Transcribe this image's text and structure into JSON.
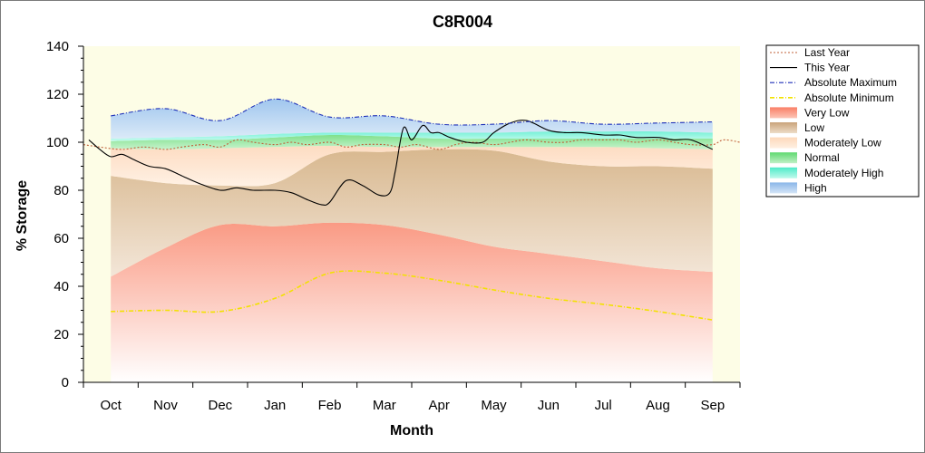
{
  "chart_data": {
    "type": "area",
    "title": "C8R004",
    "xlabel": "Month",
    "ylabel": "% Storage",
    "ylim": [
      0,
      140
    ],
    "yticks": [
      0,
      20,
      40,
      60,
      80,
      100,
      120,
      140
    ],
    "xlim": [
      -0.5,
      11.5
    ],
    "categories": [
      "Oct",
      "Nov",
      "Dec",
      "Jan",
      "Feb",
      "Mar",
      "Apr",
      "May",
      "Jun",
      "Jul",
      "Aug",
      "Sep"
    ],
    "legend_position": "right",
    "grid": false,
    "band_boundaries": {
      "x": [
        0,
        1,
        2,
        3,
        4,
        5,
        6,
        7,
        8,
        9,
        10,
        11
      ],
      "absolute_min": [
        29.5,
        30,
        29.5,
        35,
        45.5,
        45.5,
        42.5,
        38.5,
        35,
        32.5,
        29.5,
        26
      ],
      "very_low_top": [
        44,
        56,
        65.5,
        65,
        66.5,
        65.5,
        61.5,
        56.5,
        53.5,
        50.5,
        47.5,
        46
      ],
      "low_top": [
        86,
        83,
        82,
        83,
        95,
        96,
        97,
        96.5,
        92,
        90,
        90,
        89
      ],
      "moderately_low_top": [
        97.5,
        97,
        97.5,
        98,
        98.5,
        98,
        98,
        98,
        98,
        98,
        97.5,
        97
      ],
      "normal_top": [
        100.5,
        101,
        101,
        102,
        103,
        102.5,
        101.5,
        101.5,
        101.5,
        101.5,
        101.5,
        101.5
      ],
      "moderately_high_top": [
        101.5,
        102,
        102.5,
        103.5,
        104,
        104,
        104,
        104,
        104.5,
        104.5,
        104.5,
        104
      ],
      "absolute_max": [
        111,
        114,
        109,
        118,
        110.5,
        111,
        107.5,
        107.5,
        109,
        107.5,
        108,
        108.5
      ]
    },
    "series": [
      {
        "name": "Last Year",
        "color": "#c0603a",
        "style": "dotted",
        "x": [
          -0.5,
          -0.2,
          0.2,
          0.6,
          1.0,
          1.3,
          1.7,
          2.0,
          2.3,
          2.6,
          3.0,
          3.3,
          3.6,
          4.0,
          4.3,
          4.6,
          5.0,
          5.3,
          5.6,
          6.0,
          6.3,
          6.6,
          7.0,
          7.3,
          7.6,
          8.0,
          8.3,
          8.6,
          9.0,
          9.3,
          9.6,
          10.0,
          10.3,
          10.6,
          11.0,
          11.2,
          11.5
        ],
        "y": [
          99,
          98,
          97,
          98,
          97,
          98,
          99,
          98,
          101,
          100,
          99,
          100,
          99,
          100,
          98,
          99,
          99,
          98,
          99,
          97,
          99,
          100,
          99,
          100,
          101,
          100,
          100,
          101,
          101,
          101,
          100,
          101,
          100,
          99,
          99,
          101,
          100
        ]
      },
      {
        "name": "This Year",
        "color": "#000000",
        "style": "solid",
        "x": [
          -0.4,
          -0.2,
          0.0,
          0.2,
          0.4,
          0.7,
          1.0,
          1.3,
          1.6,
          2.0,
          2.3,
          2.6,
          3.0,
          3.3,
          3.6,
          3.85,
          4.0,
          4.3,
          4.6,
          4.9,
          5.1,
          5.2,
          5.35,
          5.5,
          5.7,
          5.85,
          6.0,
          6.2,
          6.5,
          6.8,
          7.0,
          7.3,
          7.6,
          8.0,
          8.3,
          8.6,
          9.0,
          9.3,
          9.6,
          10.0,
          10.3,
          10.6,
          11.0
        ],
        "y": [
          101,
          97,
          94,
          95,
          93,
          90,
          89,
          86,
          83,
          80,
          81,
          80,
          80,
          79,
          76,
          74,
          75,
          84,
          82,
          78,
          79,
          88,
          106,
          101,
          107,
          104,
          104,
          102,
          100,
          100,
          104,
          108,
          109,
          105,
          104,
          104,
          103,
          103,
          102,
          102,
          101,
          101,
          97
        ]
      },
      {
        "name": "Absolute Maximum",
        "color": "#1d2fb8",
        "style": "dashdot",
        "x": [
          0,
          1,
          2,
          3,
          4,
          5,
          6,
          7,
          8,
          9,
          10,
          11
        ],
        "y": [
          111,
          114,
          109,
          118,
          110.5,
          111,
          107.5,
          107.5,
          109,
          107.5,
          108,
          108.5
        ]
      },
      {
        "name": "Absolute Minimum",
        "color": "#f2e200",
        "style": "dashdot",
        "x": [
          0,
          1,
          2,
          3,
          4,
          5,
          6,
          7,
          8,
          9,
          10,
          11
        ],
        "y": [
          29.5,
          30,
          29.5,
          35,
          45.5,
          45.5,
          42.5,
          38.5,
          35,
          32.5,
          29.5,
          26
        ]
      }
    ],
    "legend": [
      {
        "label": "Last Year",
        "kind": "line",
        "color": "#c0603a",
        "style": "dotted"
      },
      {
        "label": "This Year",
        "kind": "line",
        "color": "#000000",
        "style": "solid"
      },
      {
        "label": "Absolute Maximum",
        "kind": "line",
        "color": "#1d2fb8",
        "style": "dashdot"
      },
      {
        "label": "Absolute Minimum",
        "kind": "line",
        "color": "#f2e200",
        "style": "dashdot"
      },
      {
        "label": "Very Low",
        "kind": "band",
        "color": "#fa9a84"
      },
      {
        "label": "Low",
        "kind": "band",
        "color": "#dcbf9b"
      },
      {
        "label": "Moderately Low",
        "kind": "band",
        "color": "#fde4cc"
      },
      {
        "label": "Normal",
        "kind": "band",
        "color": "#8fe59a"
      },
      {
        "label": "Moderately High",
        "kind": "band",
        "color": "#88f3de"
      },
      {
        "label": "High",
        "kind": "band",
        "color": "#a9cdef"
      }
    ],
    "colors": {
      "background_outside": "#fdfde6",
      "very_low": "#fa9a84",
      "low": "#dcbf9b",
      "moderately_low": "#fde4cc",
      "normal": "#8fe59a",
      "moderately_high": "#88f3de",
      "high": "#a9cdef"
    }
  }
}
